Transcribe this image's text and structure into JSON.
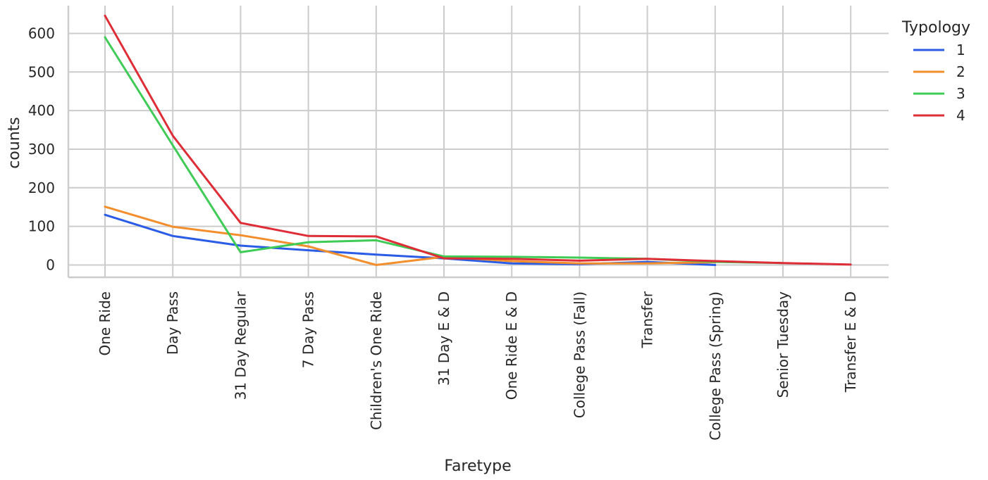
{
  "chart_data": {
    "type": "line",
    "title": "",
    "xlabel": "Faretype",
    "ylabel": "counts",
    "categories": [
      "One Ride",
      "Day Pass",
      "31 Day Regular",
      "7 Day Pass",
      "Children's One Ride",
      "31 Day E & D",
      "One Ride E & D",
      "College Pass (Fall)",
      "Transfer",
      "College Pass (Spring)",
      "Senior Tuesday",
      "Transfer E & D"
    ],
    "yticks": [
      0,
      100,
      200,
      300,
      400,
      500,
      600
    ],
    "ylim": [
      -32,
      672
    ],
    "grid": true,
    "legend": {
      "title": "Typology",
      "placement": "outside-right-top"
    },
    "series": [
      {
        "name": "1",
        "color": "#2b5ce6",
        "values": [
          130,
          75,
          50,
          38,
          27,
          17,
          4,
          2,
          8,
          0,
          null,
          null
        ]
      },
      {
        "name": "2",
        "color": "#f28e2b",
        "values": [
          151,
          99,
          77,
          48,
          0,
          21,
          10,
          4,
          4,
          7,
          null,
          null
        ]
      },
      {
        "name": "3",
        "color": "#3fcc56",
        "values": [
          590,
          310,
          33,
          59,
          64,
          22,
          21,
          19,
          16,
          8,
          5,
          null
        ]
      },
      {
        "name": "4",
        "color": "#de2d37",
        "values": [
          646,
          335,
          109,
          75,
          74,
          17,
          16,
          11,
          16,
          10,
          5,
          1
        ]
      }
    ]
  }
}
